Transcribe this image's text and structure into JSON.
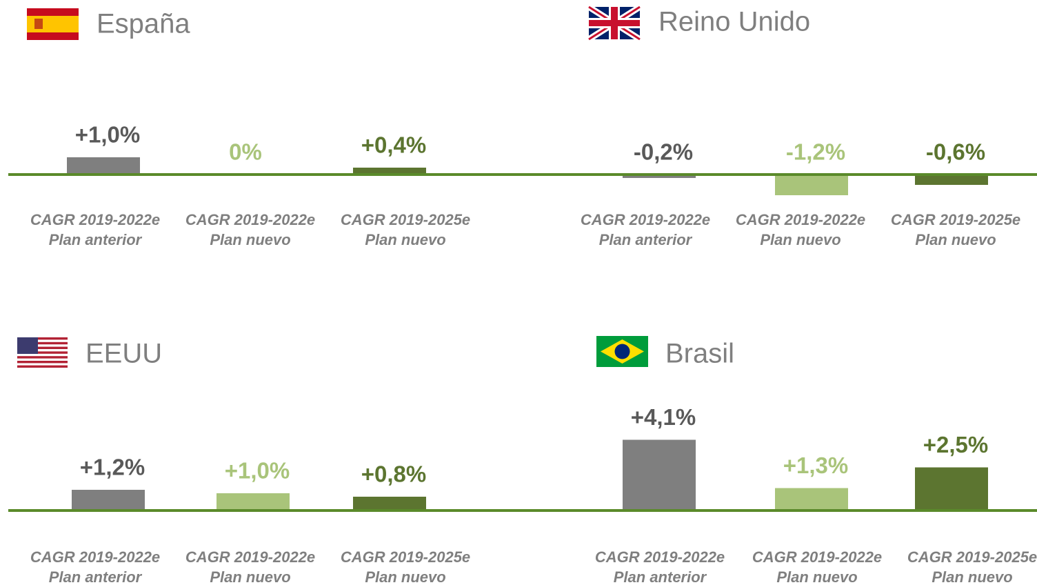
{
  "chart_data": [
    {
      "type": "bar",
      "title": "España",
      "categories": [
        [
          "CAGR 2019-2022e",
          "Plan anterior"
        ],
        [
          "CAGR 2019-2022e",
          "Plan nuevo"
        ],
        [
          "CAGR 2019-2025e",
          "Plan nuevo"
        ]
      ],
      "values": [
        1.0,
        0,
        0.4
      ],
      "value_labels": [
        "+1,0%",
        "0%",
        "+0,4%"
      ],
      "colors": [
        "#7f7f7f",
        "#a9c47a",
        "#5c7530"
      ],
      "label_colors": [
        "#595959",
        "#a9c47a",
        "#5c7530"
      ]
    },
    {
      "type": "bar",
      "title": "Reino Unido",
      "categories": [
        [
          "CAGR 2019-2022e",
          "Plan anterior"
        ],
        [
          "CAGR 2019-2022e",
          "Plan nuevo"
        ],
        [
          "CAGR 2019-2025e",
          "Plan nuevo"
        ]
      ],
      "values": [
        -0.2,
        -1.2,
        -0.6
      ],
      "value_labels": [
        "-0,2%",
        "-1,2%",
        "-0,6%"
      ],
      "colors": [
        "#7f7f7f",
        "#a9c47a",
        "#5c7530"
      ],
      "label_colors": [
        "#595959",
        "#a9c47a",
        "#5c7530"
      ]
    },
    {
      "type": "bar",
      "title": "EEUU",
      "categories": [
        [
          "CAGR 2019-2022e",
          "Plan anterior"
        ],
        [
          "CAGR 2019-2022e",
          "Plan nuevo"
        ],
        [
          "CAGR 2019-2025e",
          "Plan nuevo"
        ]
      ],
      "values": [
        1.2,
        1.0,
        0.8
      ],
      "value_labels": [
        "+1,2%",
        "+1,0%",
        "+0,8%"
      ],
      "colors": [
        "#7f7f7f",
        "#a9c47a",
        "#5c7530"
      ],
      "label_colors": [
        "#595959",
        "#a9c47a",
        "#5c7530"
      ]
    },
    {
      "type": "bar",
      "title": "Brasil",
      "categories": [
        [
          "CAGR 2019-2022e",
          "Plan anterior"
        ],
        [
          "CAGR 2019-2022e",
          "Plan nuevo"
        ],
        [
          "CAGR 2019-2025e",
          "Plan nuevo"
        ]
      ],
      "values": [
        4.1,
        1.3,
        2.5
      ],
      "value_labels": [
        "+4,1%",
        "+1,3%",
        "+2,5%"
      ],
      "colors": [
        "#7f7f7f",
        "#a9c47a",
        "#5c7530"
      ],
      "label_colors": [
        "#595959",
        "#a9c47a",
        "#5c7530"
      ]
    }
  ]
}
